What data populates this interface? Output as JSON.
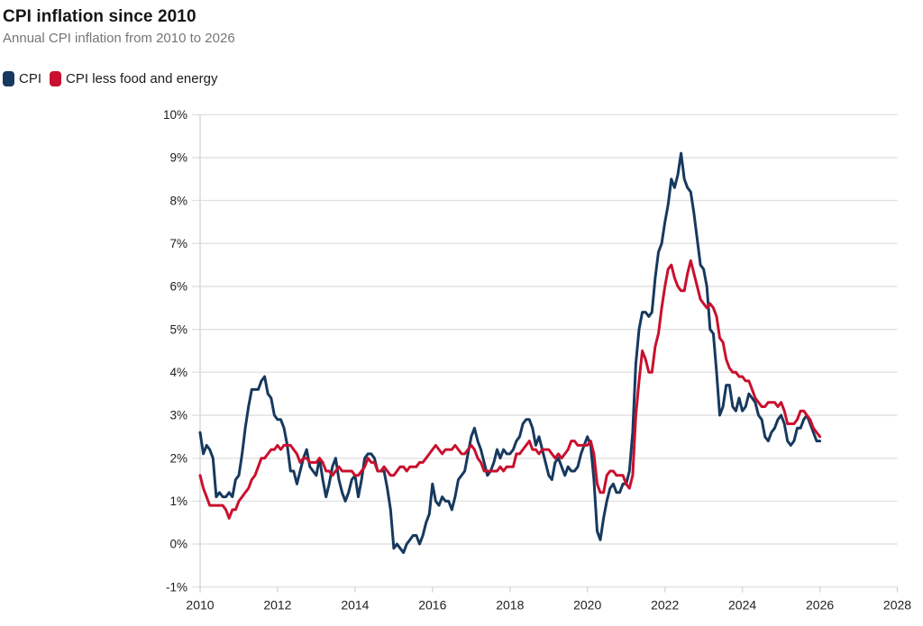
{
  "header": {
    "title": "CPI inflation since 2010",
    "subtitle": "Annual CPI inflation from 2010 to 2026"
  },
  "legend": [
    {
      "label": "CPI",
      "color": "#17395f"
    },
    {
      "label": "CPI less food and energy",
      "color": "#c9102e"
    }
  ],
  "chart_data": {
    "type": "line",
    "title": "CPI inflation since 2010",
    "subtitle": "Annual CPI inflation from 2010 to 2026",
    "xlabel": "",
    "ylabel": "",
    "xlim": [
      2010,
      2028
    ],
    "ylim": [
      -1,
      10
    ],
    "x_ticks": [
      2010,
      2012,
      2014,
      2016,
      2018,
      2020,
      2022,
      2024,
      2026,
      2028
    ],
    "y_ticks": [
      -1,
      0,
      1,
      2,
      3,
      4,
      5,
      6,
      7,
      8,
      9,
      10
    ],
    "y_tick_suffix": "%",
    "grid": "horizontal",
    "legend_position": "top-left",
    "x_start": 2010.0,
    "x_step_months": 1,
    "colors": {
      "grid": "#e2e2e2",
      "axis": "#d6d6d6",
      "tick_text": "#202020"
    },
    "series": [
      {
        "name": "CPI",
        "color": "#17395f",
        "values": [
          2.6,
          2.1,
          2.3,
          2.2,
          2.0,
          1.1,
          1.2,
          1.1,
          1.1,
          1.2,
          1.1,
          1.5,
          1.6,
          2.1,
          2.7,
          3.2,
          3.6,
          3.6,
          3.6,
          3.8,
          3.9,
          3.5,
          3.4,
          3.0,
          2.9,
          2.9,
          2.7,
          2.3,
          1.7,
          1.7,
          1.4,
          1.7,
          2.0,
          2.2,
          1.8,
          1.7,
          1.6,
          2.0,
          1.5,
          1.1,
          1.4,
          1.8,
          2.0,
          1.5,
          1.2,
          1.0,
          1.2,
          1.5,
          1.6,
          1.1,
          1.5,
          2.0,
          2.1,
          2.1,
          2.0,
          1.7,
          1.7,
          1.7,
          1.3,
          0.8,
          -0.1,
          0.0,
          -0.1,
          -0.2,
          0.0,
          0.1,
          0.2,
          0.2,
          0.0,
          0.2,
          0.5,
          0.7,
          1.4,
          1.0,
          0.9,
          1.1,
          1.0,
          1.0,
          0.8,
          1.1,
          1.5,
          1.6,
          1.7,
          2.1,
          2.5,
          2.7,
          2.4,
          2.2,
          1.9,
          1.6,
          1.7,
          1.9,
          2.2,
          2.0,
          2.2,
          2.1,
          2.1,
          2.2,
          2.4,
          2.5,
          2.8,
          2.9,
          2.9,
          2.7,
          2.3,
          2.5,
          2.2,
          1.9,
          1.6,
          1.5,
          1.9,
          2.0,
          1.8,
          1.6,
          1.8,
          1.7,
          1.7,
          1.8,
          2.1,
          2.3,
          2.5,
          2.3,
          1.5,
          0.3,
          0.1,
          0.6,
          1.0,
          1.3,
          1.4,
          1.2,
          1.2,
          1.4,
          1.4,
          1.7,
          2.6,
          4.2,
          5.0,
          5.4,
          5.4,
          5.3,
          5.4,
          6.2,
          6.8,
          7.0,
          7.5,
          7.9,
          8.5,
          8.3,
          8.6,
          9.1,
          8.5,
          8.3,
          8.2,
          7.7,
          7.1,
          6.5,
          6.4,
          6.0,
          5.0,
          4.9,
          4.0,
          3.0,
          3.2,
          3.7,
          3.7,
          3.2,
          3.1,
          3.4,
          3.1,
          3.2,
          3.5,
          3.4,
          3.3,
          3.0,
          2.9,
          2.5,
          2.4,
          2.6,
          2.7,
          2.9,
          3.0,
          2.8,
          2.4,
          2.3,
          2.4,
          2.7,
          2.7,
          2.9,
          3.0,
          2.8,
          2.6,
          2.4,
          2.4
        ]
      },
      {
        "name": "CPI less food and energy",
        "color": "#c9102e",
        "values": [
          1.6,
          1.3,
          1.1,
          0.9,
          0.9,
          0.9,
          0.9,
          0.9,
          0.8,
          0.6,
          0.8,
          0.8,
          1.0,
          1.1,
          1.2,
          1.3,
          1.5,
          1.6,
          1.8,
          2.0,
          2.0,
          2.1,
          2.2,
          2.2,
          2.3,
          2.2,
          2.3,
          2.3,
          2.3,
          2.2,
          2.1,
          1.9,
          2.0,
          2.0,
          1.9,
          1.9,
          1.9,
          2.0,
          1.9,
          1.7,
          1.7,
          1.6,
          1.7,
          1.8,
          1.7,
          1.7,
          1.7,
          1.7,
          1.6,
          1.6,
          1.7,
          1.8,
          2.0,
          1.9,
          1.9,
          1.7,
          1.7,
          1.8,
          1.7,
          1.6,
          1.6,
          1.7,
          1.8,
          1.8,
          1.7,
          1.8,
          1.8,
          1.8,
          1.9,
          1.9,
          2.0,
          2.1,
          2.2,
          2.3,
          2.2,
          2.1,
          2.2,
          2.2,
          2.2,
          2.3,
          2.2,
          2.1,
          2.1,
          2.2,
          2.3,
          2.2,
          2.0,
          1.9,
          1.7,
          1.7,
          1.7,
          1.7,
          1.7,
          1.8,
          1.7,
          1.8,
          1.8,
          1.8,
          2.1,
          2.1,
          2.2,
          2.3,
          2.4,
          2.2,
          2.2,
          2.1,
          2.2,
          2.2,
          2.2,
          2.1,
          2.0,
          2.1,
          2.0,
          2.1,
          2.2,
          2.4,
          2.4,
          2.3,
          2.3,
          2.3,
          2.3,
          2.4,
          2.1,
          1.4,
          1.2,
          1.2,
          1.6,
          1.7,
          1.7,
          1.6,
          1.6,
          1.6,
          1.4,
          1.3,
          1.6,
          3.0,
          3.8,
          4.5,
          4.3,
          4.0,
          4.0,
          4.6,
          4.9,
          5.5,
          6.0,
          6.4,
          6.5,
          6.2,
          6.0,
          5.9,
          5.9,
          6.3,
          6.6,
          6.3,
          6.0,
          5.7,
          5.6,
          5.5,
          5.6,
          5.5,
          5.3,
          4.8,
          4.7,
          4.3,
          4.1,
          4.0,
          4.0,
          3.9,
          3.9,
          3.8,
          3.8,
          3.6,
          3.4,
          3.3,
          3.2,
          3.2,
          3.3,
          3.3,
          3.3,
          3.2,
          3.3,
          3.1,
          2.8,
          2.8,
          2.8,
          2.9,
          3.1,
          3.1,
          3.0,
          2.9,
          2.7,
          2.6,
          2.5
        ]
      }
    ]
  }
}
